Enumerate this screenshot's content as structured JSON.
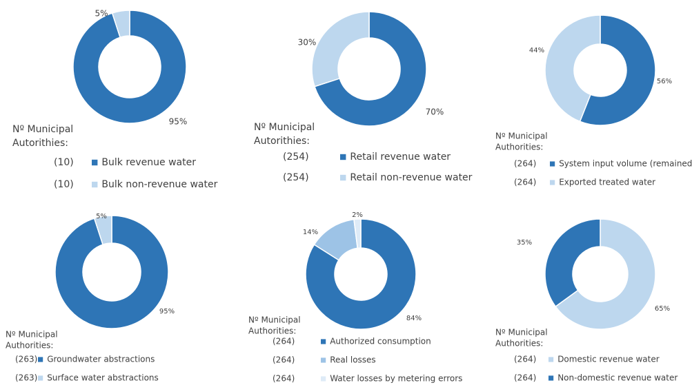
{
  "chart_data": [
    {
      "type": "donut",
      "title": [
        "Nº Municipal",
        "Autorithies:"
      ],
      "categories": [
        "Bulk revenue water",
        "Bulk non-revenue water"
      ],
      "counts": [
        "(10)",
        "(10)"
      ],
      "values": [
        95,
        5
      ],
      "value_labels": [
        "95%",
        "5%"
      ],
      "colors": [
        "#2e75b6",
        "#bdd7ee"
      ]
    },
    {
      "type": "donut",
      "title": [
        "Nº Municipal",
        "Autorithies:"
      ],
      "categories": [
        "Retail revenue water",
        "Retail non-revenue water"
      ],
      "counts": [
        "(254)",
        "(254)"
      ],
      "values": [
        70,
        30
      ],
      "value_labels": [
        "70%",
        "30%"
      ],
      "colors": [
        "#2e75b6",
        "#bdd7ee"
      ]
    },
    {
      "type": "donut",
      "title": [
        "Nº Municipal",
        "Authorities:"
      ],
      "categories": [
        "System input volume (remained)",
        "Exported treated water"
      ],
      "counts": [
        "(264)",
        "(264)"
      ],
      "values": [
        56,
        44
      ],
      "value_labels": [
        "56%",
        "44%"
      ],
      "colors": [
        "#2e75b6",
        "#bdd7ee"
      ]
    },
    {
      "type": "donut",
      "title": [
        "Nº Municipal",
        "Authorities:"
      ],
      "categories": [
        "Groundwater abstractions",
        "Surface water abstractions"
      ],
      "counts": [
        "(263)",
        "(263)"
      ],
      "values": [
        95,
        5
      ],
      "value_labels": [
        "95%",
        "5%"
      ],
      "colors": [
        "#2e75b6",
        "#bdd7ee"
      ]
    },
    {
      "type": "donut",
      "title": [
        "Nº Municipal",
        "Authorities:"
      ],
      "categories": [
        "Authorized consumption",
        "Real losses",
        "Water losses by metering errors"
      ],
      "counts": [
        "(264)",
        "(264)",
        "(264)"
      ],
      "values": [
        84,
        14,
        2
      ],
      "value_labels": [
        "84%",
        "14%",
        "2%"
      ],
      "colors": [
        "#2e75b6",
        "#9dc3e6",
        "#deebf7"
      ]
    },
    {
      "type": "donut",
      "title": [
        "Nº Municipal",
        "Authorities:"
      ],
      "categories": [
        "Domestic revenue water",
        "Non-domestic revenue water"
      ],
      "counts": [
        "(264)",
        "(264)"
      ],
      "values": [
        65,
        35
      ],
      "value_labels": [
        "65%",
        "35%"
      ],
      "colors": [
        "#bdd7ee",
        "#2e75b6"
      ]
    }
  ]
}
